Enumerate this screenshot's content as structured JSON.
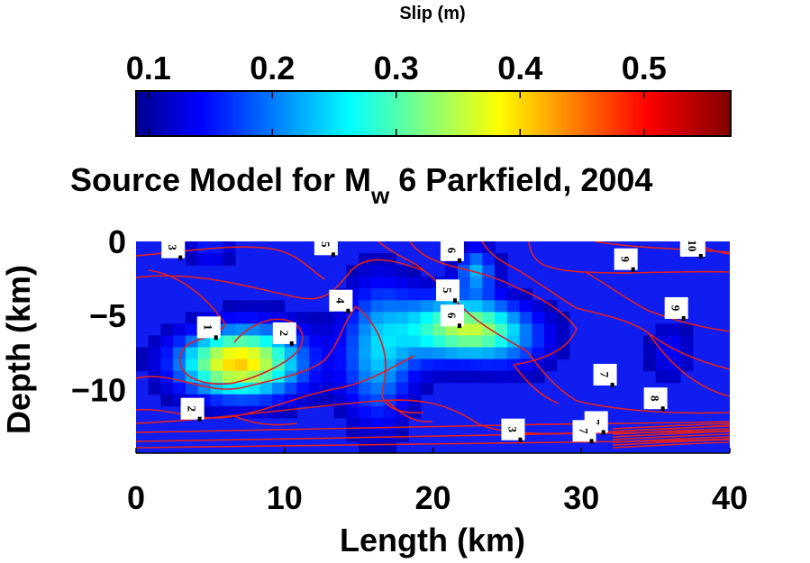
{
  "colorbar": {
    "title": "Slip (m)",
    "ticks": [
      "0.1",
      "0.2",
      "0.3",
      "0.4",
      "0.5"
    ],
    "tick_values": [
      0.1,
      0.2,
      0.3,
      0.4,
      0.5
    ],
    "range": [
      0.09,
      0.57
    ],
    "colormap": "jet"
  },
  "title": {
    "prefix": "Source Model for M",
    "subscript": "w",
    "suffix": " 6 Parkfield, 2004"
  },
  "chart_data": {
    "type": "heatmap",
    "xlabel": "Length (km)",
    "ylabel": "Depth (km)",
    "xlim": [
      0,
      40
    ],
    "ylim": [
      -14.3,
      0
    ],
    "xticks": [
      "0",
      "10",
      "20",
      "30",
      "40"
    ],
    "xtick_values": [
      0,
      10,
      20,
      30,
      40
    ],
    "yticks": [
      "0",
      "−5",
      "−10"
    ],
    "ytick_values": [
      0,
      -5,
      -10
    ],
    "background_slip": 0.1,
    "slip_patches": [
      {
        "x": 6.5,
        "y": -8.2,
        "sx": 2.6,
        "sy": 1.5,
        "slip": 0.27
      },
      {
        "x": 9.0,
        "y": -8.0,
        "sx": 2.5,
        "sy": 2.0,
        "slip": 0.07
      },
      {
        "x": 5.0,
        "y": -0.6,
        "sx": 1.0,
        "sy": 0.6,
        "slip": 0.07
      },
      {
        "x": 16.3,
        "y": -7.5,
        "sx": 1.6,
        "sy": 3.2,
        "slip": 0.14
      },
      {
        "x": 19.8,
        "y": -5.9,
        "sx": 1.8,
        "sy": 1.6,
        "slip": 0.13
      },
      {
        "x": 22.8,
        "y": -5.9,
        "sx": 1.9,
        "sy": 1.3,
        "slip": 0.2
      },
      {
        "x": 22.9,
        "y": -2.0,
        "sx": 0.9,
        "sy": 1.1,
        "slip": 0.13
      },
      {
        "x": 25.5,
        "y": -6.6,
        "sx": 2.0,
        "sy": 1.6,
        "slip": 0.08
      },
      {
        "x": 36.0,
        "y": -7.5,
        "sx": 1.0,
        "sy": 1.4,
        "slip": 0.05
      }
    ],
    "contour_color": "#e02020",
    "aftershock_labels": [
      {
        "text": "3",
        "x": 2.5,
        "y": -0.4
      },
      {
        "text": "5",
        "x": 12.8,
        "y": -0.2
      },
      {
        "text": "6",
        "x": 21.3,
        "y": -0.6
      },
      {
        "text": "10",
        "x": 37.5,
        "y": -0.3
      },
      {
        "text": "9",
        "x": 33.0,
        "y": -1.2
      },
      {
        "text": "4",
        "x": 13.8,
        "y": -4.0
      },
      {
        "text": "5",
        "x": 21.0,
        "y": -3.3
      },
      {
        "text": "6",
        "x": 21.3,
        "y": -5.0
      },
      {
        "text": "9",
        "x": 36.4,
        "y": -4.5
      },
      {
        "text": "1",
        "x": 4.9,
        "y": -5.8
      },
      {
        "text": "2",
        "x": 10.0,
        "y": -6.2
      },
      {
        "text": "7",
        "x": 31.6,
        "y": -9.0
      },
      {
        "text": "8",
        "x": 35.0,
        "y": -10.6
      },
      {
        "text": "2",
        "x": 3.8,
        "y": -11.3
      },
      {
        "text": "3",
        "x": 25.4,
        "y": -12.7
      },
      {
        "text": "7",
        "x": 31.0,
        "y": -12.2
      },
      {
        "text": "7",
        "x": 30.2,
        "y": -12.8
      }
    ]
  }
}
